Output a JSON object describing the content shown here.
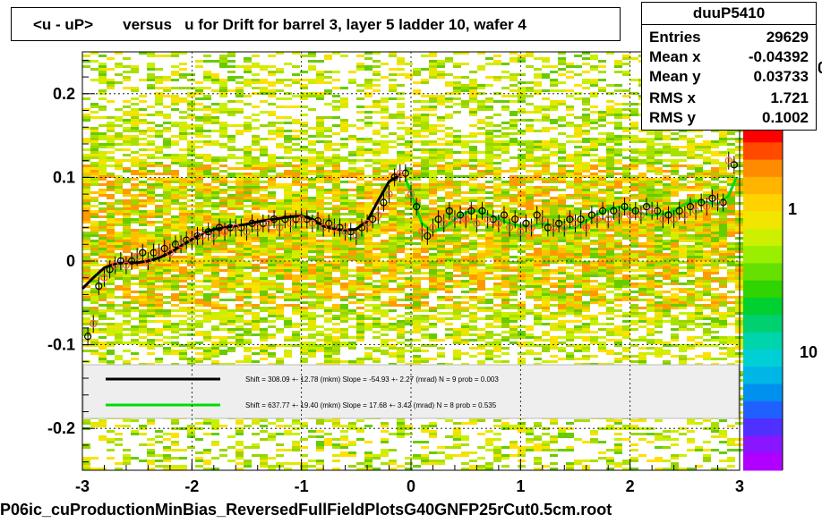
{
  "title": "<u - uP>       versus   u for Drift for barrel 3, layer 5 ladder 10, wafer 4",
  "footer": "P06ic_cuProductionMinBias_ReversedFullFieldPlotsG40GNFP25rCut0.5cm.root",
  "stats": {
    "name": "duuP5410",
    "rows": [
      {
        "label": "Entries",
        "value": "29629"
      },
      {
        "label": "Mean x",
        "value": "-0.04392"
      },
      {
        "label": "Mean y",
        "value": "0.03733"
      },
      {
        "label": "RMS x",
        "value": "1.721"
      },
      {
        "label": "RMS y",
        "value": "0.1002"
      }
    ]
  },
  "colorbar": {
    "labels": [
      "0",
      "1",
      "10"
    ],
    "colors": [
      "#ff0000",
      "#ff4a00",
      "#ff8c00",
      "#ffb400",
      "#ffd200",
      "#f2e600",
      "#ccf000",
      "#9aee00",
      "#66e000",
      "#30d400",
      "#00d030",
      "#00d070",
      "#00d4aa",
      "#00d0d6",
      "#00b6e6",
      "#0090ee",
      "#2060ff",
      "#5030ff",
      "#8a16ff",
      "#b000ff"
    ]
  },
  "fit_legend": [
    {
      "color": "#000000",
      "text": "Shift =   308.09 +- 12.78 (mkm) Slope =   -54.93 +- 2.27 (mrad)  N = 9 prob = 0.003"
    },
    {
      "color": "#00dd00",
      "text": "Shift =   637.77 +- 19.40 (mkm) Slope =    17.68 +- 3.42 (mrad)  N = 8 prob = 0.535"
    }
  ],
  "chart_data": {
    "type": "scatter",
    "title": "<u - uP>       versus   u for Drift for barrel 3, layer 5 ladder 10, wafer 4",
    "xlabel": "",
    "ylabel": "",
    "xlim": [
      -3,
      3
    ],
    "ylim": [
      -0.25,
      0.25
    ],
    "x_ticks": [
      -3,
      -2,
      -1,
      0,
      1,
      2,
      3
    ],
    "x_tick_labels": [
      "-3",
      "-2",
      "-1",
      "0",
      "1",
      "2",
      "3"
    ],
    "y_ticks": [
      -0.2,
      -0.1,
      0,
      0.1,
      0.2
    ],
    "y_tick_labels": [
      "-0.2",
      "-0.1",
      "0",
      "0.1",
      "0.2"
    ],
    "grid": true,
    "series": [
      {
        "marker": "open-circle-black",
        "x": [
          -2.95,
          -2.85,
          -2.75,
          -2.65,
          -2.55,
          -2.45,
          -2.35,
          -2.25,
          -2.15,
          -2.05,
          -1.95,
          -1.85,
          -1.75,
          -1.65,
          -1.55,
          -1.45,
          -1.35,
          -1.25,
          -1.15,
          -1.05,
          -0.95,
          -0.85,
          -0.75,
          -0.65,
          -0.55,
          -0.45,
          -0.35,
          -0.25,
          -0.15,
          -0.05,
          0.05,
          0.15,
          0.25,
          0.35,
          0.45,
          0.55,
          0.65,
          0.75,
          0.85,
          0.95,
          1.05,
          1.15,
          1.25,
          1.35,
          1.45,
          1.55,
          1.65,
          1.75,
          1.85,
          1.95,
          2.05,
          2.15,
          2.25,
          2.35,
          2.45,
          2.55,
          2.65,
          2.75,
          2.85,
          2.95
        ],
        "y": [
          -0.09,
          -0.03,
          -0.01,
          0.0,
          0.0,
          0.01,
          0.01,
          0.015,
          0.02,
          0.025,
          0.03,
          0.035,
          0.04,
          0.04,
          0.04,
          0.045,
          0.045,
          0.05,
          0.05,
          0.05,
          0.05,
          0.048,
          0.045,
          0.04,
          0.035,
          0.04,
          0.05,
          0.07,
          0.1,
          0.105,
          0.065,
          0.03,
          0.05,
          0.06,
          0.055,
          0.06,
          0.06,
          0.05,
          0.055,
          0.05,
          0.045,
          0.055,
          0.04,
          0.045,
          0.05,
          0.05,
          0.055,
          0.06,
          0.06,
          0.065,
          0.06,
          0.065,
          0.06,
          0.055,
          0.06,
          0.065,
          0.07,
          0.075,
          0.07,
          0.115
        ]
      },
      {
        "marker": "open-circle-red",
        "x": [
          -2.9,
          -2.8,
          -2.7,
          -2.6,
          -2.5,
          -2.4,
          -2.3,
          -2.2,
          -2.1,
          -2.0,
          -1.9,
          -1.8,
          -1.7,
          -1.6,
          -1.5,
          -1.4,
          -1.3,
          -1.2,
          -1.1,
          -1.0,
          -0.9,
          -0.8,
          -0.7,
          -0.6,
          -0.5,
          -0.4,
          -0.3,
          -0.2,
          -0.1,
          0.0,
          0.1,
          0.2,
          0.3,
          0.4,
          0.5,
          0.6,
          0.7,
          0.8,
          0.9,
          1.0,
          1.1,
          1.2,
          1.3,
          1.4,
          1.5,
          1.6,
          1.7,
          1.8,
          1.9,
          2.0,
          2.1,
          2.2,
          2.3,
          2.4,
          2.5,
          2.6,
          2.7,
          2.8,
          2.9
        ],
        "y": [
          -0.075,
          -0.02,
          -0.005,
          -0.005,
          0.005,
          0.0,
          0.01,
          0.01,
          0.02,
          0.025,
          0.03,
          0.03,
          0.035,
          0.04,
          0.035,
          0.04,
          0.045,
          0.04,
          0.045,
          0.05,
          0.045,
          0.04,
          0.04,
          0.035,
          0.03,
          0.045,
          0.055,
          0.08,
          0.105,
          0.08,
          0.035,
          0.04,
          0.045,
          0.05,
          0.05,
          0.045,
          0.05,
          0.045,
          0.04,
          0.035,
          0.04,
          0.05,
          0.04,
          0.04,
          0.045,
          0.04,
          0.05,
          0.05,
          0.055,
          0.055,
          0.055,
          0.06,
          0.05,
          0.05,
          0.055,
          0.06,
          0.065,
          0.07,
          0.12
        ]
      },
      {
        "name": "",
        "color": "#000000",
        "line": true,
        "x": [
          -3.0,
          -2.9,
          -2.8,
          -2.7,
          -2.6,
          -2.5,
          -2.4,
          -2.3,
          -2.2,
          -2.1,
          -2.0,
          -1.9,
          -1.8,
          -1.7,
          -1.6,
          -1.5,
          -1.4,
          -1.3,
          -1.2,
          -1.1,
          -1.0,
          -0.9,
          -0.8,
          -0.7,
          -0.6,
          -0.5,
          -0.4,
          -0.3,
          -0.2,
          -0.1
        ],
        "y": [
          -0.033,
          -0.02,
          -0.008,
          -0.003,
          -0.002,
          -0.002,
          0.0,
          0.004,
          0.01,
          0.018,
          0.026,
          0.033,
          0.038,
          0.04,
          0.042,
          0.044,
          0.047,
          0.049,
          0.051,
          0.053,
          0.054,
          0.05,
          0.042,
          0.038,
          0.037,
          0.038,
          0.048,
          0.072,
          0.095,
          0.103
        ]
      },
      {
        "name": "",
        "color": "#00dd00",
        "line": true,
        "x": [
          -0.05,
          0.0,
          0.1,
          0.2,
          0.3,
          0.4,
          0.5,
          0.6,
          0.7,
          0.8,
          0.9,
          1.0,
          1.1,
          1.2,
          1.3,
          1.4,
          1.5,
          1.6,
          1.7,
          1.8,
          1.9,
          2.0,
          2.1,
          2.2,
          2.3,
          2.4,
          2.5,
          2.6,
          2.7,
          2.8,
          2.9,
          2.97
        ],
        "y": [
          0.098,
          0.082,
          0.045,
          0.035,
          0.04,
          0.05,
          0.058,
          0.06,
          0.056,
          0.05,
          0.045,
          0.042,
          0.042,
          0.045,
          0.043,
          0.039,
          0.04,
          0.048,
          0.056,
          0.062,
          0.065,
          0.062,
          0.057,
          0.055,
          0.056,
          0.06,
          0.068,
          0.072,
          0.07,
          0.068,
          0.078,
          0.1
        ]
      }
    ]
  }
}
